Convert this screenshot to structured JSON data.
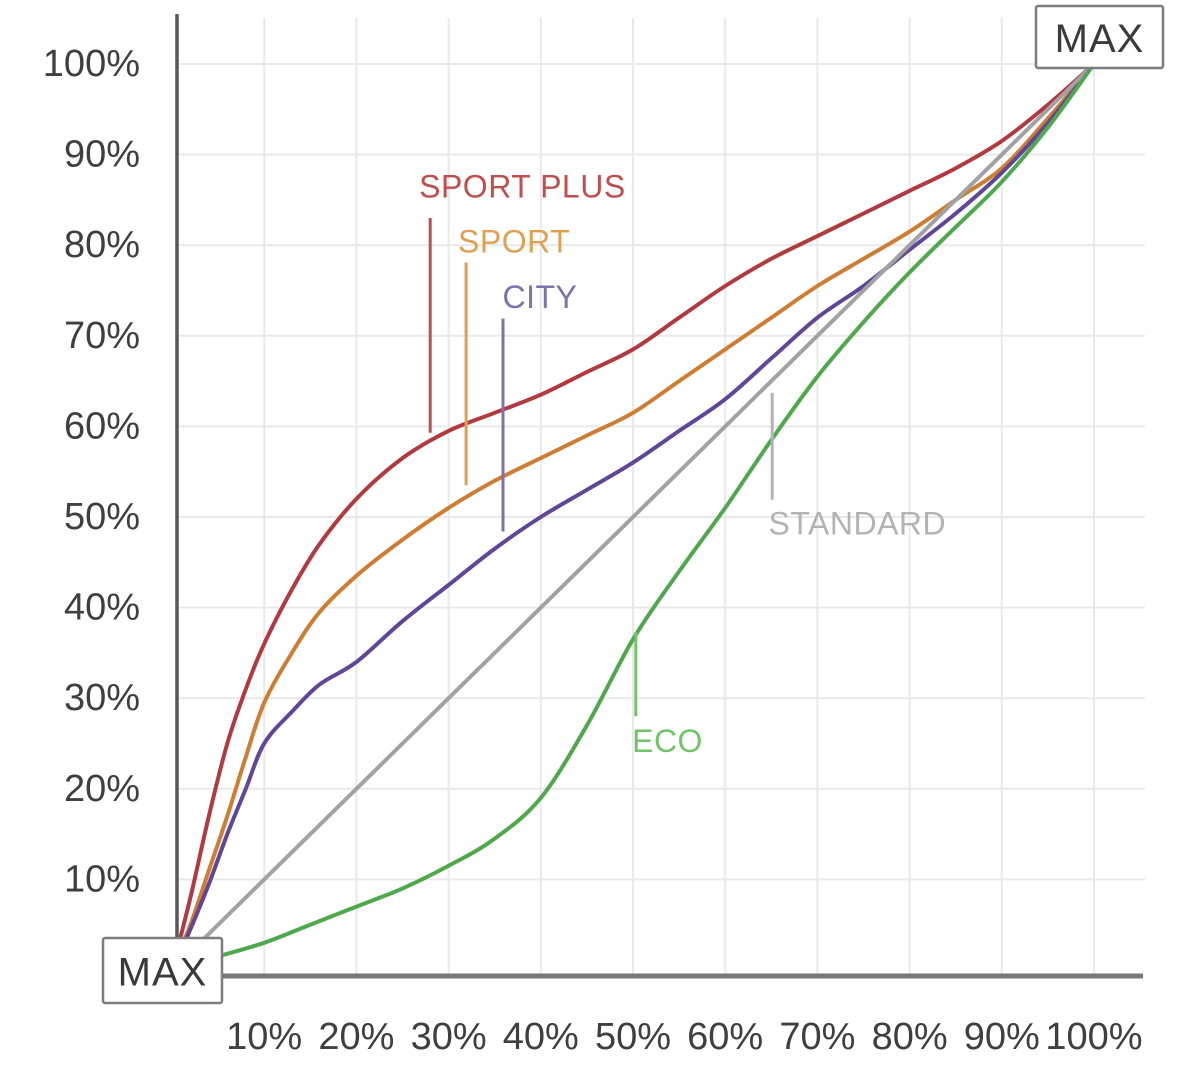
{
  "chart_data": {
    "type": "line",
    "title": "",
    "xlabel": "",
    "ylabel": "",
    "xlim": [
      0,
      100
    ],
    "ylim": [
      0,
      100
    ],
    "grid": true,
    "legend_position": "inline-labels",
    "x_ticks": [
      "10%",
      "20%",
      "30%",
      "40%",
      "50%",
      "60%",
      "70%",
      "80%",
      "90%",
      "100%"
    ],
    "y_ticks": [
      "10%",
      "20%",
      "30%",
      "40%",
      "50%",
      "60%",
      "70%",
      "80%",
      "90%",
      "100%"
    ],
    "x_tick_values": [
      10,
      20,
      30,
      40,
      50,
      60,
      70,
      80,
      90,
      100
    ],
    "y_tick_values": [
      10,
      20,
      30,
      40,
      50,
      60,
      70,
      80,
      90,
      100
    ],
    "max_labels": {
      "origin": "MAX",
      "top_right": "MAX"
    },
    "series": [
      {
        "name": "SPORT PLUS",
        "color": "#b23a3f",
        "label_color": "#c24d4f",
        "label_anchor": {
          "x": 38.0,
          "y": 86.5,
          "align": "middle"
        },
        "leader": {
          "x": 28.0,
          "y_from": 83.0,
          "y_to": 59.3
        },
        "points": [
          [
            0,
            0
          ],
          [
            2,
            8
          ],
          [
            4,
            17
          ],
          [
            6,
            25
          ],
          [
            8,
            31
          ],
          [
            10,
            36
          ],
          [
            13,
            42
          ],
          [
            16,
            47
          ],
          [
            20,
            52
          ],
          [
            25,
            56.5
          ],
          [
            30,
            59.5
          ],
          [
            35,
            61.5
          ],
          [
            40,
            63.5
          ],
          [
            45,
            66
          ],
          [
            50,
            68.5
          ],
          [
            55,
            72
          ],
          [
            60,
            75.5
          ],
          [
            65,
            78.5
          ],
          [
            70,
            81
          ],
          [
            75,
            83.5
          ],
          [
            80,
            86
          ],
          [
            85,
            88.5
          ],
          [
            90,
            91.5
          ],
          [
            95,
            95.5
          ],
          [
            100,
            100
          ]
        ]
      },
      {
        "name": "SPORT",
        "color": "#ce7d33",
        "label_color": "#dfa14f",
        "label_anchor": {
          "x": 37.1,
          "y": 80.4,
          "align": "middle"
        },
        "leader": {
          "x": 31.9,
          "y_from": 78.1,
          "y_to": 53.5
        },
        "points": [
          [
            0,
            0
          ],
          [
            2,
            5
          ],
          [
            4,
            11
          ],
          [
            6,
            17
          ],
          [
            8,
            23.5
          ],
          [
            10,
            29.5
          ],
          [
            13,
            35
          ],
          [
            16,
            39.5
          ],
          [
            20,
            43.5
          ],
          [
            25,
            47.5
          ],
          [
            30,
            51
          ],
          [
            35,
            54
          ],
          [
            40,
            56.5
          ],
          [
            45,
            59
          ],
          [
            50,
            61.5
          ],
          [
            55,
            65
          ],
          [
            60,
            68.5
          ],
          [
            65,
            72
          ],
          [
            70,
            75.5
          ],
          [
            75,
            78.5
          ],
          [
            80,
            81.5
          ],
          [
            85,
            85
          ],
          [
            90,
            88.5
          ],
          [
            95,
            94
          ],
          [
            100,
            100
          ]
        ]
      },
      {
        "name": "CITY",
        "color": "#5f4697",
        "label_color": "#8071ae",
        "label_anchor": {
          "x": 39.9,
          "y": 74.3,
          "align": "middle"
        },
        "leader": {
          "x": 35.9,
          "y_from": 71.9,
          "y_to": 48.4
        },
        "points": [
          [
            0,
            0
          ],
          [
            2,
            4.5
          ],
          [
            4,
            9.5
          ],
          [
            6,
            15
          ],
          [
            8,
            20
          ],
          [
            10,
            25
          ],
          [
            13,
            28.5
          ],
          [
            16,
            31.5
          ],
          [
            20,
            34
          ],
          [
            25,
            38.5
          ],
          [
            30,
            42.5
          ],
          [
            35,
            46.5
          ],
          [
            40,
            50
          ],
          [
            45,
            53
          ],
          [
            50,
            56
          ],
          [
            55,
            59.5
          ],
          [
            60,
            63
          ],
          [
            65,
            67.5
          ],
          [
            70,
            72
          ],
          [
            75,
            75.5
          ],
          [
            80,
            79.5
          ],
          [
            85,
            83.5
          ],
          [
            90,
            88
          ],
          [
            95,
            93.5
          ],
          [
            100,
            100
          ]
        ]
      },
      {
        "name": "STANDARD",
        "color": "#a2a2a6",
        "label_color": "#b3b3b5",
        "label_anchor": {
          "x": 64.7,
          "y": 49.3,
          "align": "start"
        },
        "leader": {
          "x": 65.1,
          "y_from": 51.9,
          "y_to": 63.7
        },
        "points": [
          [
            0,
            0
          ],
          [
            100,
            100
          ]
        ]
      },
      {
        "name": "ECO",
        "color": "#4fa84d",
        "label_color": "#72c468",
        "label_anchor": {
          "x": 49.9,
          "y": 25.3,
          "align": "start"
        },
        "leader": {
          "x": 50.3,
          "y_from": 28.0,
          "y_to": 37.3
        },
        "points": [
          [
            0,
            0
          ],
          [
            5,
            1.5
          ],
          [
            10,
            3
          ],
          [
            15,
            5
          ],
          [
            20,
            7
          ],
          [
            25,
            9
          ],
          [
            30,
            11.5
          ],
          [
            35,
            14.5
          ],
          [
            40,
            19
          ],
          [
            45,
            27
          ],
          [
            50,
            36.5
          ],
          [
            55,
            44
          ],
          [
            60,
            51
          ],
          [
            65,
            58.5
          ],
          [
            70,
            65.5
          ],
          [
            75,
            71.5
          ],
          [
            80,
            77
          ],
          [
            85,
            82
          ],
          [
            90,
            87
          ],
          [
            95,
            93
          ],
          [
            100,
            100
          ]
        ]
      }
    ]
  },
  "colors": {
    "background": "#ffffff",
    "grid": "#e9e9ea",
    "x_axis": "#77787a",
    "y_axis": "#59595b",
    "tick_text": "#3f3f41",
    "max_box_border": "#7b7d7f",
    "max_box_fill": "#ffffff",
    "max_text": "#3a3a3c"
  }
}
